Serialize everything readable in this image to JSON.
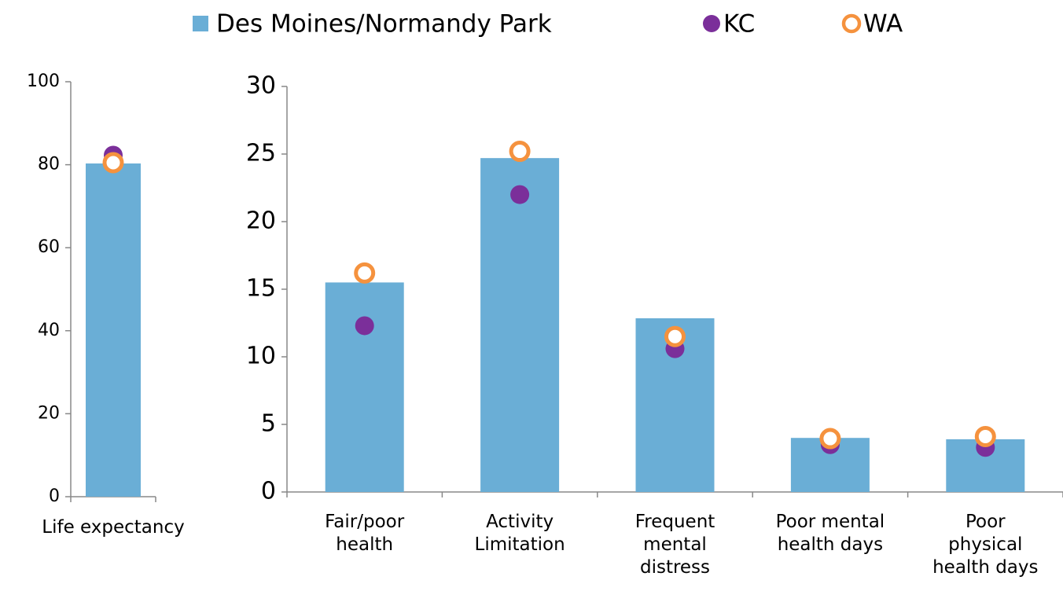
{
  "chart_data": [
    {
      "type": "bar",
      "categories": [
        "Life expectancy"
      ],
      "series": [
        {
          "name": "Des Moines/Normandy Park",
          "color": "#6aaed6",
          "marker": "bar",
          "values": [
            80.3
          ]
        },
        {
          "name": "KC",
          "color": "#7b2f9a",
          "marker": "filled-circle",
          "values": [
            82.3
          ]
        },
        {
          "name": "WA",
          "color": "#f5923e",
          "marker": "open-circle",
          "values": [
            80.5
          ]
        }
      ],
      "ylim": [
        0,
        100
      ],
      "yticks": [
        0,
        20,
        40,
        60,
        80,
        100
      ],
      "grid": false,
      "legend": "top"
    },
    {
      "type": "bar",
      "categories": [
        "Fair/poor health",
        "Activity Limitation",
        "Frequent mental distress",
        "Poor mental health days",
        "Poor physical health days"
      ],
      "series": [
        {
          "name": "Des Moines/Normandy Park",
          "color": "#6aaed6",
          "marker": "bar",
          "values": [
            15.5,
            24.7,
            12.85,
            4.0,
            3.9
          ]
        },
        {
          "name": "KC",
          "color": "#7b2f9a",
          "marker": "filled-circle",
          "values": [
            12.3,
            22.0,
            10.6,
            3.5,
            3.3
          ]
        },
        {
          "name": "WA",
          "color": "#f5923e",
          "marker": "open-circle",
          "values": [
            16.2,
            25.2,
            11.5,
            3.95,
            4.1
          ]
        }
      ],
      "ylim": [
        0,
        30
      ],
      "yticks": [
        0,
        5,
        10,
        15,
        20,
        25,
        30
      ],
      "grid": false
    }
  ]
}
